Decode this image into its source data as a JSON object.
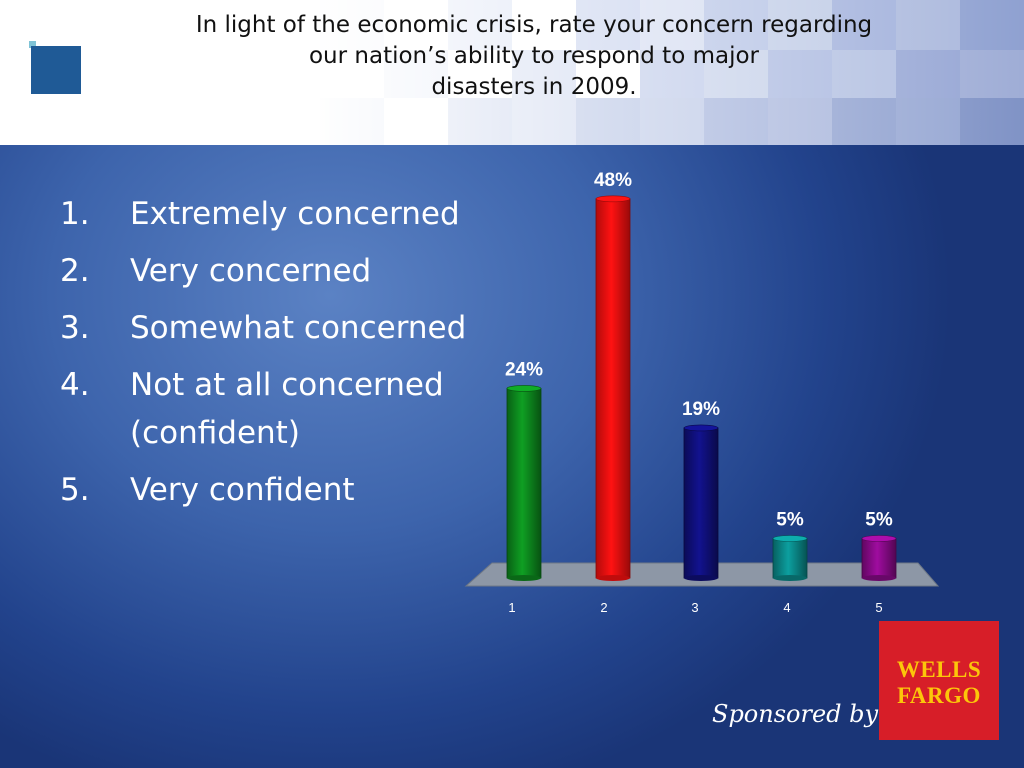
{
  "title_lines": [
    "In light of the economic crisis, rate your concern regarding",
    "our nation’s ability to respond to major",
    "disasters in 2009."
  ],
  "options": [
    {
      "number": "1.",
      "text": "Extremely concerned"
    },
    {
      "number": "2.",
      "text": "Very concerned"
    },
    {
      "number": "3.",
      "text": "Somewhat concerned"
    },
    {
      "number": "4.",
      "text": "Not at all concerned (confident)"
    },
    {
      "number": "5.",
      "text": "Very confident"
    }
  ],
  "chart_data": {
    "type": "bar",
    "categories": [
      "1",
      "2",
      "3",
      "4",
      "5"
    ],
    "values": [
      24,
      48,
      19,
      5,
      5
    ],
    "data_labels": [
      "24%",
      "48%",
      "19%",
      "5%",
      "5%"
    ],
    "title": "",
    "xlabel": "",
    "ylabel": "",
    "ylim": [
      0,
      50
    ],
    "grid": false,
    "legend": "none",
    "colors": [
      "#0d8a1e",
      "#ff1010",
      "#10107c",
      "#0a8a8a",
      "#8a0a8a"
    ]
  },
  "sponsor": {
    "text": "Sponsored by",
    "logo_lines": [
      "WELLS",
      "FARGO"
    ],
    "logo_bg": "#d71e28",
    "logo_fg": "#fcc60a"
  }
}
